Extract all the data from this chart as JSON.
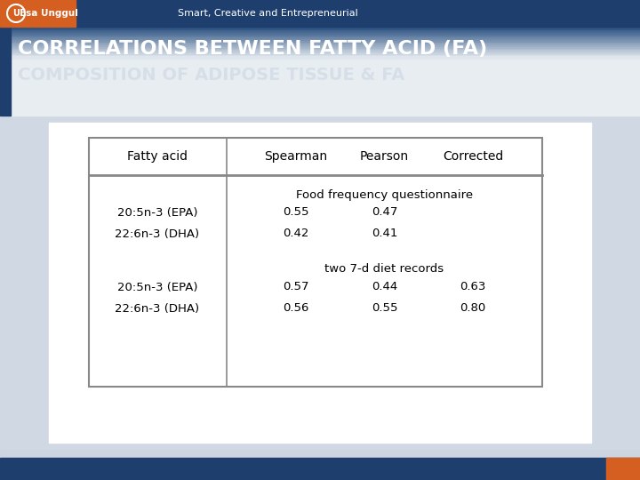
{
  "title_line1": "CORRELATIONS BETWEEN FATTY ACID (FA)",
  "title_line2": "COMPOSITION OF ADIPOSE TISSUE & FA",
  "slide_bg_color": "#cdd5e0",
  "col_headers": [
    "Fatty acid",
    "Spearman",
    "Pearson",
    "Corrected"
  ],
  "section1_label": "Food frequency questionnaire",
  "section1_rows": [
    [
      "20:5n-3 (EPA)",
      "0.55",
      "0.47",
      ""
    ],
    [
      "22:6n-3 (DHA)",
      "0.42",
      "0.41",
      ""
    ]
  ],
  "section2_label": "two 7-d diet records",
  "section2_rows": [
    [
      "20:5n-3 (EPA)",
      "0.57",
      "0.44",
      "0.63"
    ],
    [
      "22:6n-3 (DHA)",
      "0.56",
      "0.55",
      "0.80"
    ]
  ],
  "top_bar_color": "#1e3f6e",
  "logo_bg": "#d45f20",
  "bottom_bar_color": "#1e3f6e",
  "bottom_accent_color": "#d45f20",
  "title1_color": "#ffffff",
  "title2_color": "#c8d4e0",
  "table_border_color": "#888888",
  "table_text_color": "#111111"
}
